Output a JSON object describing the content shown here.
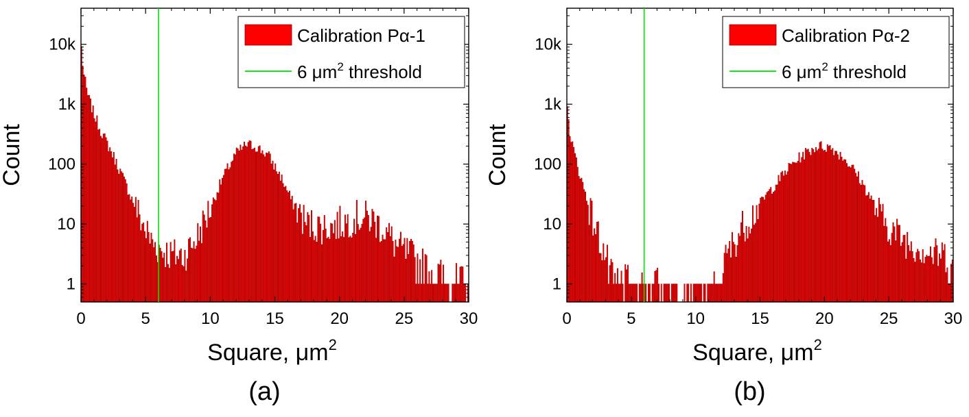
{
  "chart_data": [
    {
      "type": "bar",
      "panel_label": "(a)",
      "xlabel": "Square, μm",
      "xlabel_sup": "2",
      "ylabel": "Count",
      "xlim": [
        0,
        30
      ],
      "ylim": [
        0.5,
        40000
      ],
      "yscale": "log",
      "x_ticks": [
        0,
        5,
        10,
        15,
        20,
        25,
        30
      ],
      "x_tick_labels": [
        "0",
        "5",
        "10",
        "15",
        "20",
        "25",
        "30"
      ],
      "y_ticks": [
        1,
        10,
        100,
        1000,
        10000
      ],
      "y_tick_labels": [
        "1",
        "10",
        "100",
        "1k",
        "10k"
      ],
      "bin_width": 0.1,
      "bar_color": "#ff0000",
      "threshold_color": "#00dd00",
      "threshold_x": 6,
      "legend": {
        "placement": "top-right",
        "entries": [
          {
            "kind": "patch",
            "label": "Calibration Pα-1",
            "color": "#ff0000"
          },
          {
            "kind": "line",
            "label_pre": "6 μm",
            "label_sup": "2",
            "label_post": " threshold",
            "color": "#00dd00"
          }
        ]
      },
      "series_profile": [
        [
          0.0,
          12000
        ],
        [
          0.2,
          3500
        ],
        [
          0.5,
          1500
        ],
        [
          1.0,
          700
        ],
        [
          1.5,
          380
        ],
        [
          2.0,
          230
        ],
        [
          2.5,
          140
        ],
        [
          3.0,
          80
        ],
        [
          3.5,
          45
        ],
        [
          4.0,
          25
        ],
        [
          4.5,
          14
        ],
        [
          5.0,
          8
        ],
        [
          5.5,
          5
        ],
        [
          6.0,
          4
        ],
        [
          7.0,
          3
        ],
        [
          8.0,
          3
        ],
        [
          9.0,
          6
        ],
        [
          10.0,
          18
        ],
        [
          11.0,
          60
        ],
        [
          12.0,
          150
        ],
        [
          12.8,
          210
        ],
        [
          13.5,
          200
        ],
        [
          14.5,
          140
        ],
        [
          15.5,
          60
        ],
        [
          16.5,
          20
        ],
        [
          17.5,
          10
        ],
        [
          18.5,
          9
        ],
        [
          19.5,
          9
        ],
        [
          20.5,
          11
        ],
        [
          21.5,
          13
        ],
        [
          22.5,
          12
        ],
        [
          23.5,
          8
        ],
        [
          24.5,
          4
        ],
        [
          25.5,
          3
        ],
        [
          26.5,
          2
        ],
        [
          27.5,
          1.5
        ],
        [
          28.5,
          1.2
        ],
        [
          30.0,
          1
        ]
      ]
    },
    {
      "type": "bar",
      "panel_label": "(b)",
      "xlabel": "Square, μm",
      "xlabel_sup": "2",
      "ylabel": "Count",
      "xlim": [
        0,
        30
      ],
      "ylim": [
        0.5,
        40000
      ],
      "yscale": "log",
      "x_ticks": [
        0,
        5,
        10,
        15,
        20,
        25,
        30
      ],
      "x_tick_labels": [
        "0",
        "5",
        "10",
        "15",
        "20",
        "25",
        "30"
      ],
      "y_ticks": [
        1,
        10,
        100,
        1000,
        10000
      ],
      "y_tick_labels": [
        "1",
        "10",
        "100",
        "1k",
        "10k"
      ],
      "bin_width": 0.1,
      "bar_color": "#ff0000",
      "threshold_color": "#00dd00",
      "threshold_x": 6,
      "legend": {
        "placement": "top-right",
        "entries": [
          {
            "kind": "patch",
            "label": "Calibration Pα-2",
            "color": "#ff0000"
          },
          {
            "kind": "line",
            "label_pre": "6 μm",
            "label_sup": "2",
            "label_post": " threshold",
            "color": "#00dd00"
          }
        ]
      },
      "series_profile": [
        [
          0.0,
          900
        ],
        [
          0.3,
          300
        ],
        [
          0.6,
          150
        ],
        [
          1.0,
          70
        ],
        [
          1.5,
          30
        ],
        [
          2.0,
          12
        ],
        [
          2.5,
          6
        ],
        [
          3.0,
          3
        ],
        [
          3.5,
          1.2
        ],
        [
          5.0,
          1
        ],
        [
          7.0,
          1
        ],
        [
          9.0,
          0.7
        ],
        [
          11.0,
          0.6
        ],
        [
          11.5,
          1
        ],
        [
          12.5,
          3
        ],
        [
          13.5,
          8
        ],
        [
          14.5,
          15
        ],
        [
          15.5,
          30
        ],
        [
          16.5,
          55
        ],
        [
          17.5,
          100
        ],
        [
          18.5,
          150
        ],
        [
          19.5,
          200
        ],
        [
          20.5,
          190
        ],
        [
          21.5,
          130
        ],
        [
          22.5,
          70
        ],
        [
          23.5,
          30
        ],
        [
          24.5,
          12
        ],
        [
          25.5,
          7
        ],
        [
          26.5,
          5
        ],
        [
          27.5,
          4
        ],
        [
          28.5,
          3
        ],
        [
          29.5,
          3
        ],
        [
          30.0,
          2
        ]
      ]
    }
  ]
}
